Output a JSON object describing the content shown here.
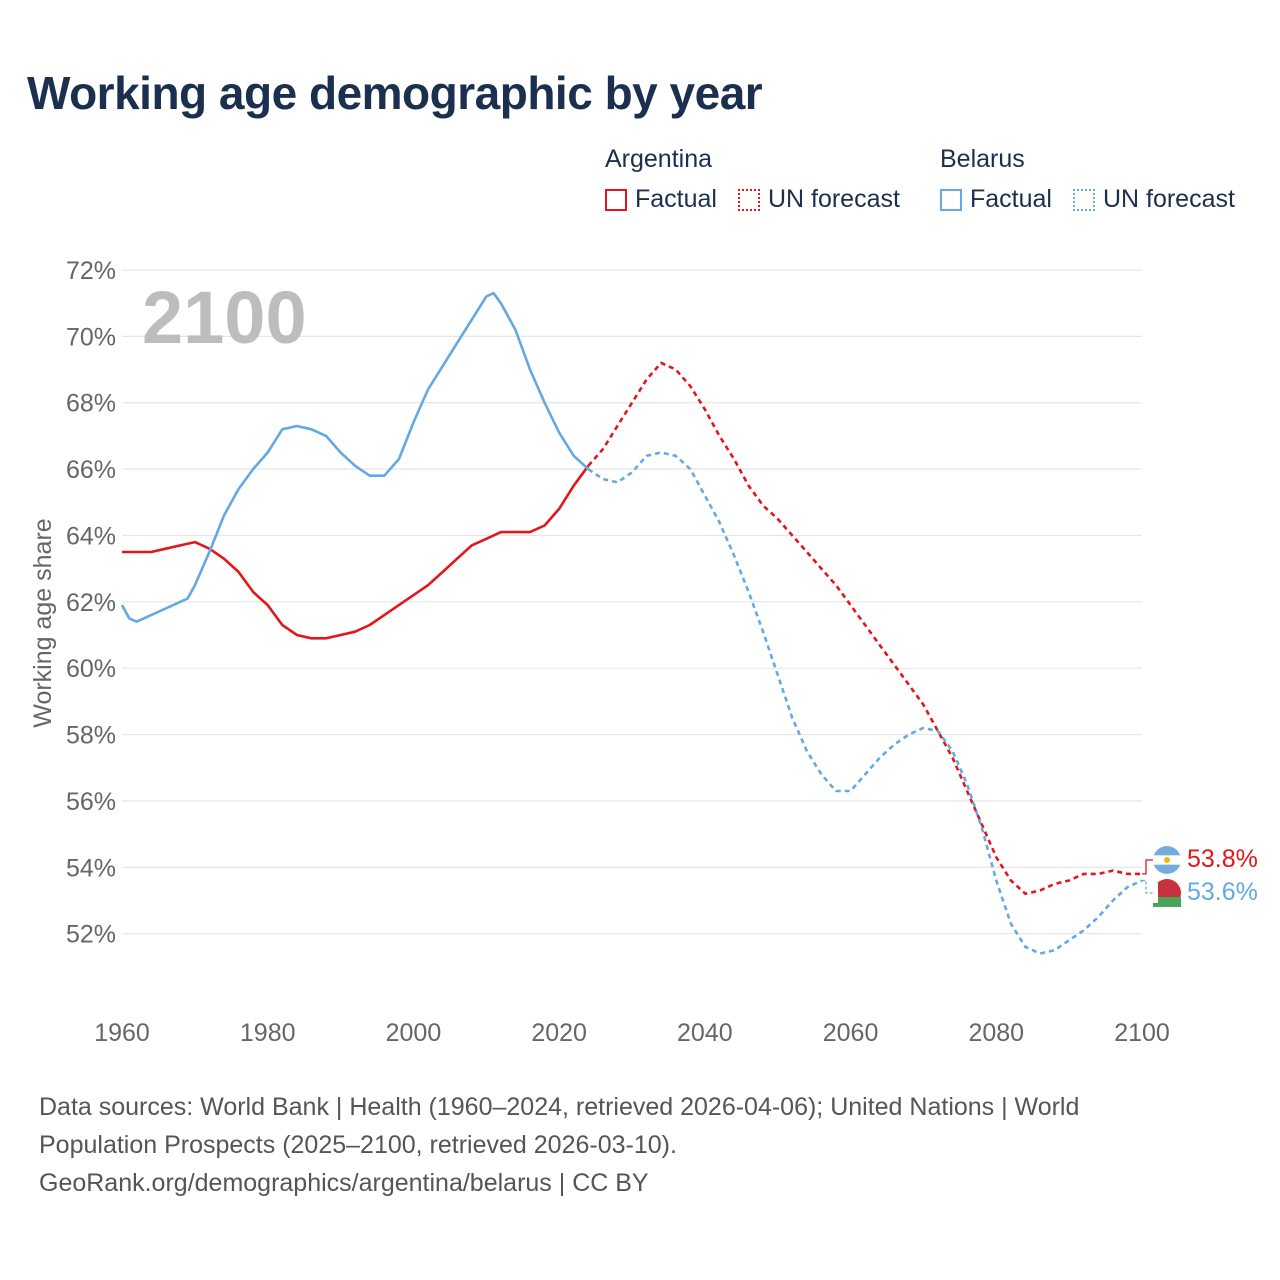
{
  "page": {
    "title": "Working age demographic by year",
    "footer_line1": "Data sources: World Bank | Health (1960–2024, retrieved 2026-04-06); United Nations | World",
    "footer_line2": "Population Prospects (2025–2100, retrieved 2026-03-10).",
    "footer_line3": "GeoRank.org/demographics/argentina/belarus | CC BY"
  },
  "legend": {
    "argentina": {
      "title": "Argentina",
      "factual": "Factual",
      "forecast": "UN forecast",
      "color": "#e3161b"
    },
    "belarus": {
      "title": "Belarus",
      "factual": "Factual",
      "forecast": "UN forecast",
      "color": "#64a9e3"
    }
  },
  "chart_data": {
    "type": "line",
    "title": "Working age demographic by year",
    "xlabel": "",
    "ylabel": "Working age share",
    "xlim": [
      1960,
      2100
    ],
    "ylim": [
      50,
      72
    ],
    "x_ticks": [
      1960,
      1980,
      2000,
      2020,
      2040,
      2060,
      2080,
      2100
    ],
    "x_tick_labels": [
      "1960",
      "1980",
      "2000",
      "2020",
      "2040",
      "2060",
      "2080",
      "2100"
    ],
    "y_ticks": [
      52,
      54,
      56,
      58,
      60,
      62,
      64,
      66,
      68,
      70,
      72
    ],
    "y_tick_labels": [
      "52%",
      "54%",
      "56%",
      "58%",
      "60%",
      "62%",
      "64%",
      "66%",
      "68%",
      "70%",
      "72%"
    ],
    "grid": true,
    "year_label": "2100",
    "series": [
      {
        "name": "Argentina",
        "color": "#e3161b",
        "factual_end": 2024,
        "end_label": "53.8%",
        "points": [
          [
            1960,
            63.5
          ],
          [
            1962,
            63.5
          ],
          [
            1964,
            63.5
          ],
          [
            1966,
            63.6
          ],
          [
            1968,
            63.7
          ],
          [
            1970,
            63.8
          ],
          [
            1972,
            63.6
          ],
          [
            1974,
            63.3
          ],
          [
            1976,
            62.9
          ],
          [
            1978,
            62.3
          ],
          [
            1980,
            61.9
          ],
          [
            1982,
            61.3
          ],
          [
            1984,
            61.0
          ],
          [
            1986,
            60.9
          ],
          [
            1988,
            60.9
          ],
          [
            1990,
            61.0
          ],
          [
            1992,
            61.1
          ],
          [
            1994,
            61.3
          ],
          [
            1996,
            61.6
          ],
          [
            1998,
            61.9
          ],
          [
            2000,
            62.2
          ],
          [
            2002,
            62.5
          ],
          [
            2004,
            62.9
          ],
          [
            2006,
            63.3
          ],
          [
            2008,
            63.7
          ],
          [
            2010,
            63.9
          ],
          [
            2012,
            64.1
          ],
          [
            2014,
            64.1
          ],
          [
            2016,
            64.1
          ],
          [
            2018,
            64.3
          ],
          [
            2020,
            64.8
          ],
          [
            2022,
            65.5
          ],
          [
            2024,
            66.1
          ],
          [
            2026,
            66.6
          ],
          [
            2028,
            67.3
          ],
          [
            2030,
            68.0
          ],
          [
            2032,
            68.7
          ],
          [
            2034,
            69.2
          ],
          [
            2036,
            69.0
          ],
          [
            2038,
            68.5
          ],
          [
            2040,
            67.8
          ],
          [
            2042,
            67.0
          ],
          [
            2044,
            66.3
          ],
          [
            2046,
            65.5
          ],
          [
            2048,
            64.9
          ],
          [
            2050,
            64.5
          ],
          [
            2052,
            64.0
          ],
          [
            2054,
            63.5
          ],
          [
            2056,
            63.0
          ],
          [
            2058,
            62.5
          ],
          [
            2060,
            61.9
          ],
          [
            2062,
            61.3
          ],
          [
            2064,
            60.7
          ],
          [
            2066,
            60.1
          ],
          [
            2068,
            59.5
          ],
          [
            2070,
            58.9
          ],
          [
            2072,
            58.1
          ],
          [
            2074,
            57.3
          ],
          [
            2076,
            56.3
          ],
          [
            2078,
            55.3
          ],
          [
            2080,
            54.3
          ],
          [
            2082,
            53.6
          ],
          [
            2084,
            53.2
          ],
          [
            2086,
            53.3
          ],
          [
            2088,
            53.5
          ],
          [
            2090,
            53.6
          ],
          [
            2092,
            53.8
          ],
          [
            2094,
            53.8
          ],
          [
            2096,
            53.9
          ],
          [
            2098,
            53.8
          ],
          [
            2100,
            53.8
          ]
        ]
      },
      {
        "name": "Belarus",
        "color": "#64a9e3",
        "factual_end": 2024,
        "end_label": "53.6%",
        "points": [
          [
            1960,
            61.9
          ],
          [
            1961,
            61.5
          ],
          [
            1962,
            61.4
          ],
          [
            1964,
            61.6
          ],
          [
            1966,
            61.8
          ],
          [
            1968,
            62.0
          ],
          [
            1969,
            62.1
          ],
          [
            1970,
            62.5
          ],
          [
            1972,
            63.5
          ],
          [
            1974,
            64.6
          ],
          [
            1976,
            65.4
          ],
          [
            1978,
            66.0
          ],
          [
            1980,
            66.5
          ],
          [
            1982,
            67.2
          ],
          [
            1984,
            67.3
          ],
          [
            1986,
            67.2
          ],
          [
            1988,
            67.0
          ],
          [
            1990,
            66.5
          ],
          [
            1992,
            66.1
          ],
          [
            1994,
            65.8
          ],
          [
            1996,
            65.8
          ],
          [
            1998,
            66.3
          ],
          [
            2000,
            67.4
          ],
          [
            2002,
            68.4
          ],
          [
            2004,
            69.1
          ],
          [
            2006,
            69.8
          ],
          [
            2008,
            70.5
          ],
          [
            2010,
            71.2
          ],
          [
            2011,
            71.3
          ],
          [
            2012,
            71.0
          ],
          [
            2014,
            70.2
          ],
          [
            2016,
            69.0
          ],
          [
            2018,
            68.0
          ],
          [
            2020,
            67.1
          ],
          [
            2022,
            66.4
          ],
          [
            2024,
            66.0
          ],
          [
            2026,
            65.7
          ],
          [
            2028,
            65.6
          ],
          [
            2030,
            65.9
          ],
          [
            2032,
            66.4
          ],
          [
            2034,
            66.5
          ],
          [
            2036,
            66.4
          ],
          [
            2038,
            66.0
          ],
          [
            2040,
            65.2
          ],
          [
            2042,
            64.4
          ],
          [
            2044,
            63.4
          ],
          [
            2046,
            62.3
          ],
          [
            2048,
            61.1
          ],
          [
            2050,
            59.8
          ],
          [
            2052,
            58.5
          ],
          [
            2054,
            57.5
          ],
          [
            2056,
            56.8
          ],
          [
            2058,
            56.3
          ],
          [
            2060,
            56.3
          ],
          [
            2062,
            56.8
          ],
          [
            2064,
            57.3
          ],
          [
            2066,
            57.7
          ],
          [
            2068,
            58.0
          ],
          [
            2070,
            58.2
          ],
          [
            2072,
            58.1
          ],
          [
            2074,
            57.5
          ],
          [
            2076,
            56.5
          ],
          [
            2078,
            55.2
          ],
          [
            2080,
            53.6
          ],
          [
            2082,
            52.3
          ],
          [
            2084,
            51.6
          ],
          [
            2086,
            51.4
          ],
          [
            2088,
            51.5
          ],
          [
            2090,
            51.8
          ],
          [
            2092,
            52.1
          ],
          [
            2094,
            52.5
          ],
          [
            2096,
            53.0
          ],
          [
            2098,
            53.4
          ],
          [
            2100,
            53.6
          ]
        ]
      }
    ]
  }
}
